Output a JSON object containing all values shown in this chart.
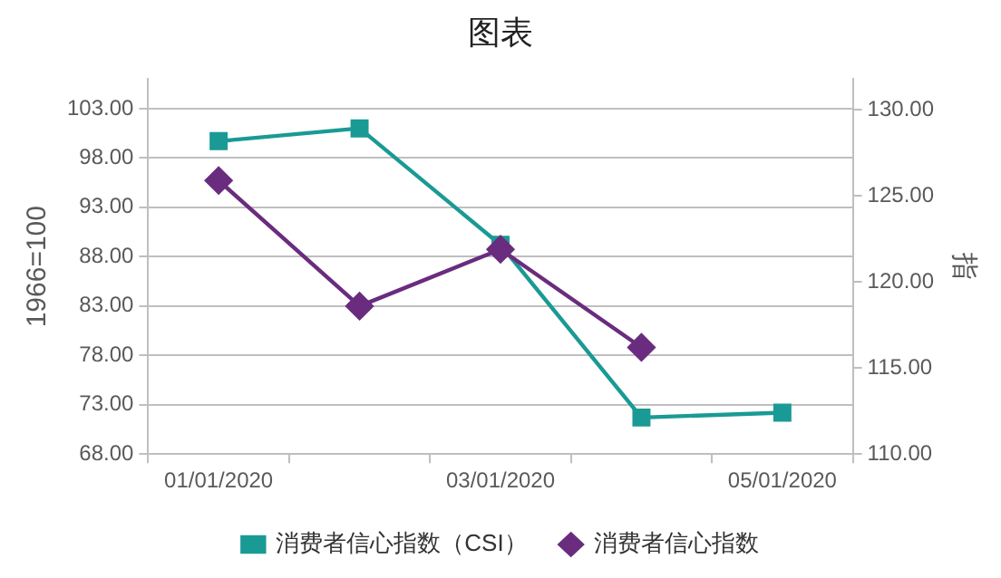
{
  "chart_data": {
    "type": "line",
    "title": "图表",
    "ylabel": "1966=100",
    "y2label": "指",
    "categories": [
      "01/01/2020",
      null,
      "03/01/2020",
      null,
      "05/01/2020"
    ],
    "series": [
      {
        "name": "消费者信心指数（CSI）",
        "color": "#1a9a94",
        "marker": "square",
        "values": [
          99.7,
          101.0,
          89.2,
          71.7,
          72.2
        ]
      },
      {
        "name": "消费者信心指数",
        "color": "#6a2c7e",
        "marker": "diamond",
        "axis": "y2",
        "values": [
          125.9,
          118.6,
          121.9,
          116.2,
          null
        ]
      }
    ],
    "ylim": [
      68,
      106
    ],
    "yticks": [
      {
        "value": 68,
        "label": "68.00"
      },
      {
        "value": 73,
        "label": "73.00"
      },
      {
        "value": 78,
        "label": "78.00"
      },
      {
        "value": 83,
        "label": "83.00"
      },
      {
        "value": 88,
        "label": "88.00"
      },
      {
        "value": 93,
        "label": "93.00"
      },
      {
        "value": 98,
        "label": "98.00"
      },
      {
        "value": 103,
        "label": "103.00"
      }
    ],
    "y2lim": [
      110,
      131.8
    ],
    "y2ticks": [
      {
        "value": 110,
        "label": "110.00"
      },
      {
        "value": 115,
        "label": "115.00"
      },
      {
        "value": 120,
        "label": "120.00"
      },
      {
        "value": 125,
        "label": "125.00"
      },
      {
        "value": 130,
        "label": "130.00"
      }
    ],
    "grid": "y",
    "legend": "bottom",
    "line_style": "solid"
  }
}
